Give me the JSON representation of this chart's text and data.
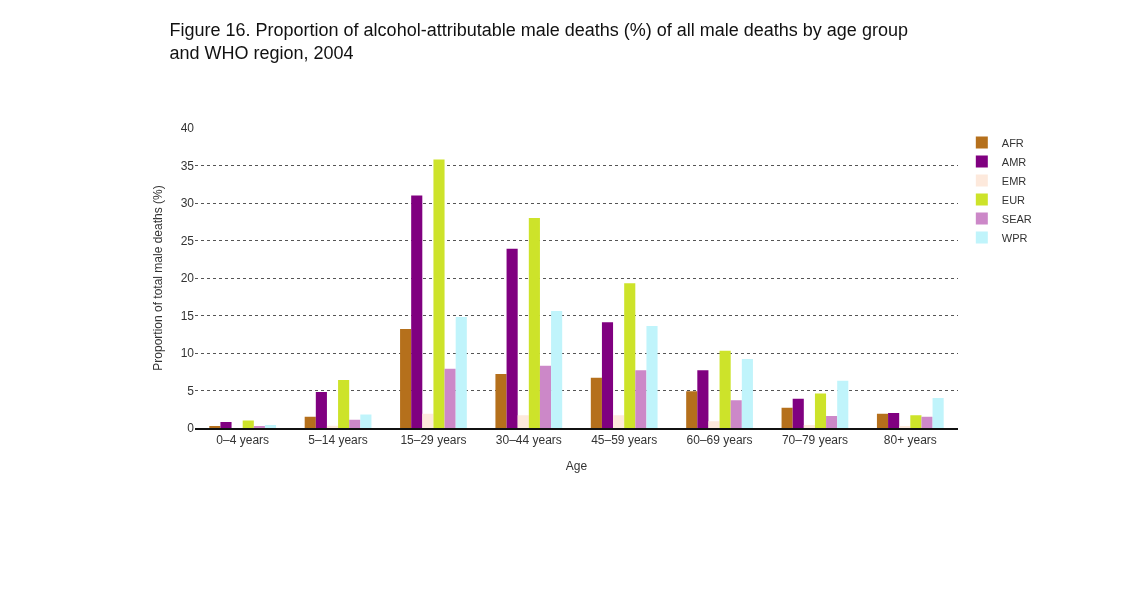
{
  "chart_data": {
    "type": "bar",
    "title": "Figure 16. Proportion of alcohol-attributable male deaths (%) of all male deaths by age group and WHO region, 2004",
    "xlabel": "Age",
    "ylabel": "Proportion of total male deaths (%)",
    "categories": [
      "0–4 years",
      "5–14 years",
      "15–29 years",
      "30–44 years",
      "45–59 years",
      "60–69 years",
      "70–79 years",
      "80+ years"
    ],
    "series": [
      {
        "name": "AFR",
        "color": "#b5701c",
        "values": [
          0.2,
          1.5,
          13.2,
          7.2,
          6.7,
          4.9,
          2.7,
          1.9
        ]
      },
      {
        "name": "AMR",
        "color": "#800080",
        "values": [
          0.8,
          4.8,
          31.0,
          23.9,
          14.1,
          7.7,
          3.9,
          2.0
        ]
      },
      {
        "name": "EMR",
        "color": "#fde9dc",
        "values": [
          null,
          0.3,
          1.9,
          1.7,
          1.7,
          0.9,
          0.4,
          0.2
        ]
      },
      {
        "name": "EUR",
        "color": "#cde32a",
        "values": [
          1.0,
          6.4,
          35.8,
          28.0,
          19.3,
          10.3,
          4.6,
          1.7
        ]
      },
      {
        "name": "SEAR",
        "color": "#cc88c8",
        "values": [
          0.2,
          1.1,
          7.9,
          8.3,
          7.7,
          3.7,
          1.6,
          1.5
        ]
      },
      {
        "name": "WPR",
        "color": "#c0f4fb",
        "values": [
          0.4,
          1.8,
          14.8,
          15.6,
          13.6,
          9.2,
          6.3,
          4.0
        ]
      }
    ],
    "ylim": [
      0,
      40
    ],
    "yticks": [
      0,
      5,
      10,
      15,
      20,
      25,
      30,
      35,
      40
    ],
    "grid": "y",
    "legend": "top right"
  }
}
